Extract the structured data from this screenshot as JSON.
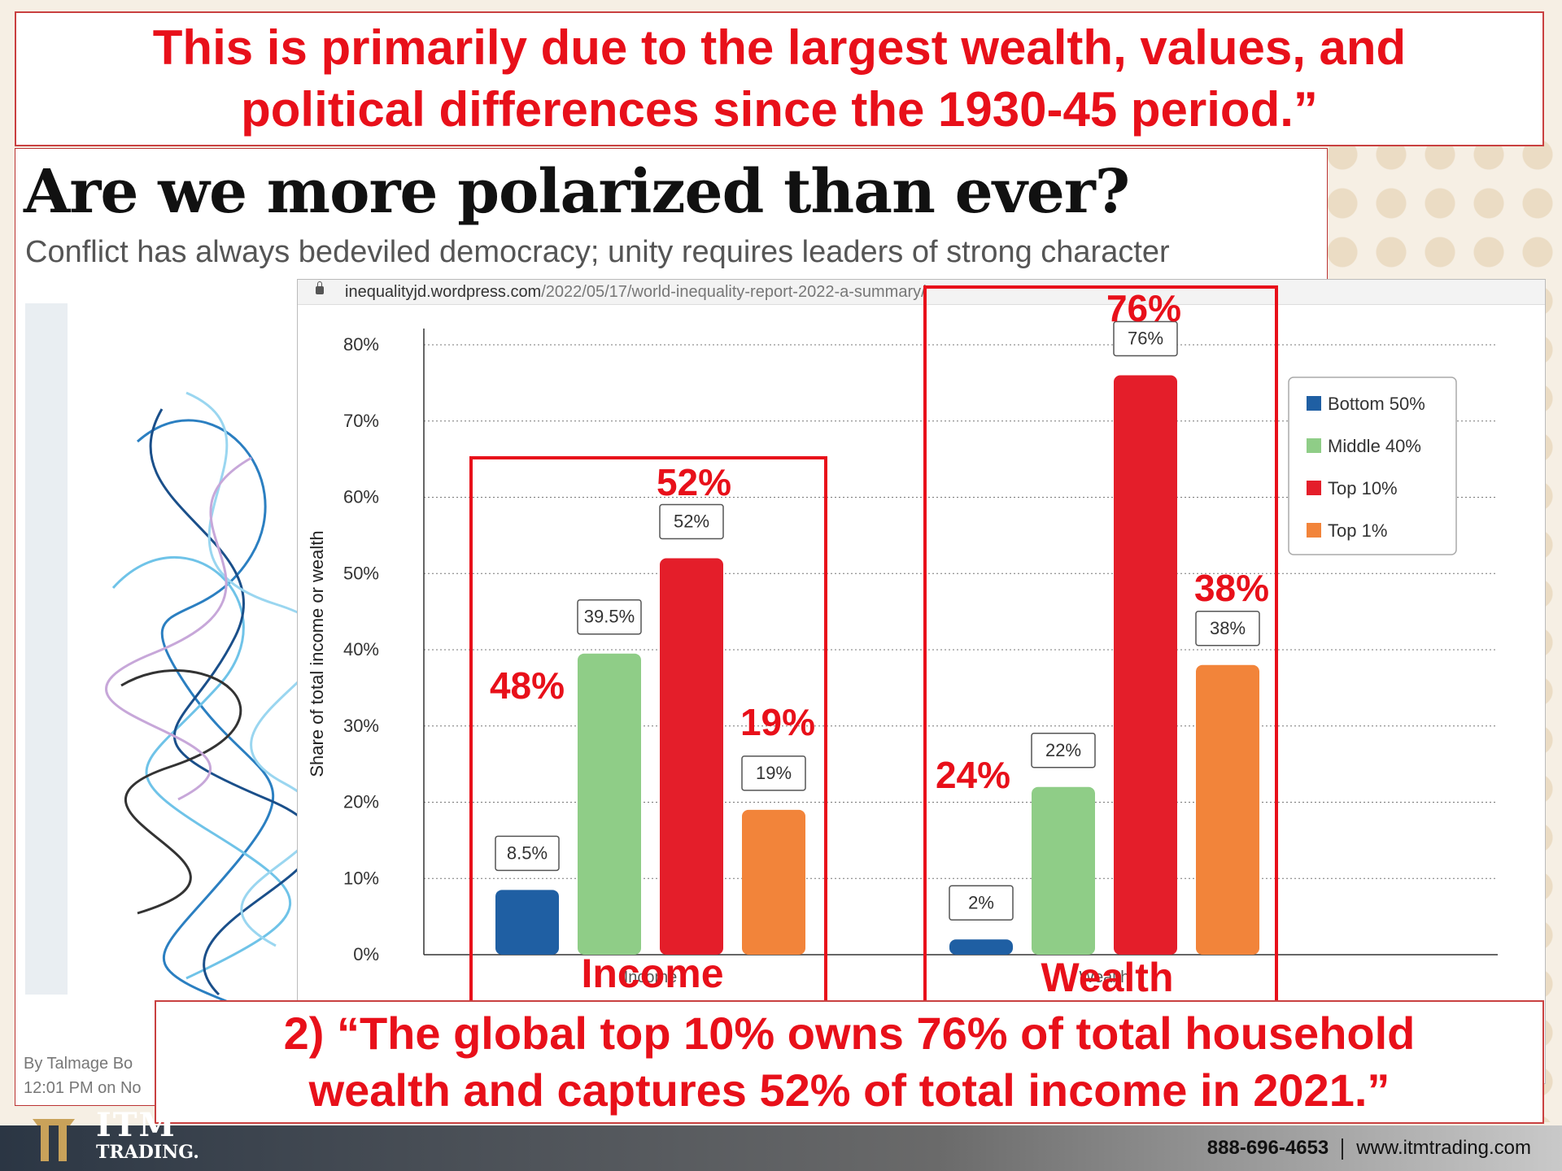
{
  "top_banner": {
    "line1": "This is primarily due to the largest  wealth, values, and",
    "line2": "political differences since the 1930-45 period.”"
  },
  "article": {
    "title": "Are we more polarized than ever?",
    "subtitle": "Conflict has always bedeviled democracy; unity requires leaders of strong character",
    "byline_1": "By Talmage Bo",
    "byline_2": "12:01 PM on No"
  },
  "browser": {
    "url_host": "inequalityjd.wordpress.com",
    "url_path": "/2022/05/17/world-inequality-report-2022-a-summary/"
  },
  "chart_data": {
    "type": "bar",
    "categories": [
      "Income",
      "Wealth"
    ],
    "series": [
      {
        "name": "Bottom 50%",
        "color": "#1f5fa3",
        "values": [
          8.5,
          2
        ]
      },
      {
        "name": "Middle 40%",
        "color": "#8fcd87",
        "values": [
          39.5,
          22
        ]
      },
      {
        "name": "Top 10%",
        "color": "#e41e2a",
        "values": [
          52,
          76
        ]
      },
      {
        "name": "Top 1%",
        "color": "#f2843a",
        "values": [
          19,
          38
        ]
      }
    ],
    "data_labels": [
      [
        "8.5%",
        "39.5%",
        "52%",
        "19%"
      ],
      [
        "2%",
        "22%",
        "76%",
        "38%"
      ]
    ],
    "ylabel": "Share of total income or wealth",
    "ylim": [
      0,
      80
    ],
    "yticks": [
      "0%",
      "10%",
      "20%",
      "30%",
      "40%",
      "50%",
      "60%",
      "70%",
      "80%"
    ],
    "grid": true,
    "legend_position": "top-right",
    "annotations": {
      "income": {
        "box_label": "Income",
        "top10": "52%",
        "bottom": "48%",
        "top1": "19%"
      },
      "wealth": {
        "box_label": "Wealth",
        "top10": "76%",
        "bottom": "24%",
        "top1": "38%"
      }
    }
  },
  "bottom_banner": {
    "line1": "2) “The global top 10% owns 76% of total household",
    "line2": "wealth and captures 52% of total income in 2021.”"
  },
  "footer": {
    "logo_main": "ITM",
    "logo_sub": "TRADING.",
    "phone": "888-696-4653",
    "website": "www.itmtrading.com"
  },
  "colors": {
    "accent_red": "#e8101a"
  }
}
